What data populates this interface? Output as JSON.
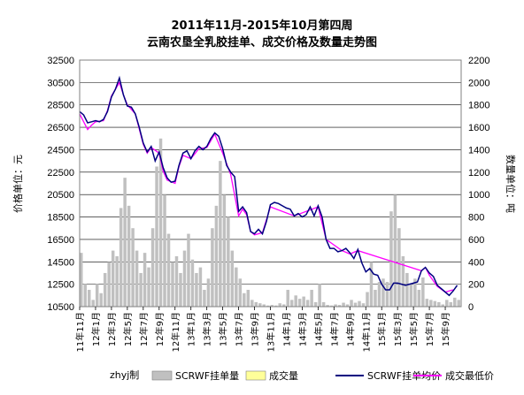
{
  "chart_data": {
    "type": "combo-bar-line",
    "title_line1": "2011年11月-2015年10月第四周",
    "title_line2": "云南农垦全乳胶挂单、成交价格及数量走势图",
    "ylabel_left": "价格单位：元",
    "ylabel_right": "数量单位：吨",
    "credit": "zhyj制",
    "ylim_left": [
      10500,
      32500
    ],
    "ylim_right": [
      0,
      2200
    ],
    "yticks_left": [
      "32500",
      "30500",
      "28500",
      "26500",
      "24500",
      "22500",
      "20500",
      "18500",
      "16500",
      "14500",
      "12500",
      "10500"
    ],
    "yticks_right": [
      "2200",
      "2000",
      "1800",
      "1600",
      "1400",
      "1200",
      "1000",
      "800",
      "600",
      "400",
      "200",
      "0"
    ],
    "xticks": [
      "11年11月",
      "12年1月",
      "12年3月",
      "12年5月",
      "12年7月",
      "12年9月",
      "12年11月",
      "13年1月",
      "13年3月",
      "13年5月",
      "13年7月",
      "13年9月",
      "13年11月",
      "14年1月",
      "14年3月",
      "14年5月",
      "14年7月",
      "14年9月",
      "14年11月",
      "15年1月",
      "15年3月",
      "15年5月",
      "15年7月",
      "15年9月"
    ],
    "legend": [
      {
        "name": "SCRWF挂单量",
        "color": "#c0c0c0",
        "kind": "bar"
      },
      {
        "name": "成交量",
        "color": "#ffff99",
        "kind": "bar"
      },
      {
        "name": "SCRWF挂单均价",
        "color": "#000080",
        "kind": "line"
      },
      {
        "name": "成交最低价",
        "color": "#ff00ff",
        "kind": "line"
      }
    ],
    "series_volume_month_index": [
      0,
      0.5,
      1,
      1.5,
      2,
      2.5,
      3,
      3.5,
      4,
      4.5,
      5,
      5.5,
      6,
      6.5,
      7,
      7.5,
      8,
      8.5,
      9,
      9.5,
      10,
      10.5,
      11,
      11.5,
      12,
      12.5,
      13,
      13.5,
      14,
      14.5,
      15,
      15.5,
      16,
      16.5,
      17,
      17.5,
      18,
      18.5,
      19,
      19.5,
      20,
      20.5,
      21,
      21.5,
      22,
      22.5,
      23,
      23.5,
      24,
      24.5,
      25,
      25.5,
      26,
      26.5,
      27,
      27.5,
      28,
      28.5,
      29,
      29.5,
      30,
      30.5,
      31,
      31.5,
      32,
      32.5,
      33,
      33.5,
      34,
      34.5,
      35,
      35.5,
      36,
      36.5,
      37,
      37.5,
      38,
      38.5,
      39,
      39.5,
      40,
      40.5,
      41,
      41.5,
      42,
      42.5,
      43,
      43.5,
      44,
      44.5,
      45,
      45.5,
      46,
      46.5,
      47,
      47.5
    ],
    "series_volume": [
      480,
      200,
      150,
      60,
      200,
      120,
      300,
      400,
      500,
      450,
      880,
      1150,
      900,
      700,
      500,
      300,
      480,
      350,
      700,
      1250,
      1500,
      1000,
      650,
      400,
      450,
      300,
      500,
      650,
      420,
      300,
      350,
      150,
      250,
      700,
      900,
      1300,
      1000,
      800,
      500,
      350,
      250,
      120,
      150,
      60,
      40,
      30,
      20,
      10,
      15,
      10,
      30,
      20,
      150,
      60,
      100,
      70,
      90,
      60,
      150,
      40,
      200,
      40,
      15,
      10,
      20,
      15,
      35,
      20,
      60,
      35,
      50,
      30,
      130,
      400,
      150,
      220,
      250,
      220,
      850,
      1000,
      700,
      450,
      300,
      200,
      250,
      150,
      260,
      70,
      60,
      50,
      40,
      20,
      60,
      40,
      80,
      60
    ],
    "series_avg_price_points": [
      [
        0,
        27900
      ],
      [
        0.5,
        27600
      ],
      [
        1,
        26900
      ],
      [
        1.5,
        27000
      ],
      [
        2,
        27100
      ],
      [
        2.5,
        27000
      ],
      [
        3,
        27200
      ],
      [
        3.5,
        27900
      ],
      [
        4,
        29200
      ],
      [
        4.5,
        29900
      ],
      [
        5,
        30900
      ],
      [
        5.5,
        29400
      ],
      [
        6,
        28400
      ],
      [
        6.5,
        28300
      ],
      [
        7,
        27700
      ],
      [
        7.5,
        26500
      ],
      [
        8,
        25100
      ],
      [
        8.5,
        24300
      ],
      [
        9,
        24800
      ],
      [
        9.5,
        23500
      ],
      [
        10,
        24300
      ],
      [
        10.5,
        22900
      ],
      [
        11,
        22000
      ],
      [
        11.5,
        21600
      ],
      [
        12,
        21700
      ],
      [
        12.5,
        23100
      ],
      [
        13,
        24200
      ],
      [
        13.5,
        24400
      ],
      [
        14,
        23700
      ],
      [
        14.5,
        24400
      ],
      [
        15,
        24800
      ],
      [
        15.5,
        24500
      ],
      [
        16,
        24800
      ],
      [
        16.5,
        25500
      ],
      [
        17,
        26000
      ],
      [
        17.5,
        25700
      ],
      [
        18,
        24600
      ],
      [
        18.5,
        23100
      ],
      [
        19,
        22500
      ],
      [
        19.5,
        22100
      ],
      [
        20,
        19000
      ],
      [
        20.5,
        19400
      ],
      [
        21,
        18900
      ],
      [
        21.5,
        17200
      ],
      [
        22,
        17000
      ],
      [
        22.5,
        17400
      ],
      [
        23,
        17000
      ],
      [
        23.5,
        18100
      ],
      [
        24,
        19600
      ],
      [
        24.5,
        19800
      ],
      [
        25,
        19700
      ],
      [
        25.5,
        19500
      ],
      [
        26,
        19300
      ],
      [
        26.5,
        19200
      ],
      [
        27,
        18600
      ],
      [
        27.5,
        18800
      ],
      [
        28,
        18500
      ],
      [
        28.5,
        18700
      ],
      [
        29,
        19400
      ],
      [
        29.5,
        18600
      ],
      [
        30,
        19500
      ],
      [
        30.5,
        18500
      ],
      [
        31,
        16500
      ],
      [
        31.5,
        15700
      ],
      [
        32,
        15700
      ],
      [
        32.5,
        15400
      ],
      [
        33,
        15500
      ],
      [
        33.5,
        15700
      ],
      [
        34,
        15300
      ],
      [
        34.5,
        14800
      ],
      [
        35,
        15600
      ],
      [
        35.5,
        14400
      ],
      [
        36,
        13600
      ],
      [
        36.5,
        13900
      ],
      [
        37,
        13400
      ],
      [
        37.5,
        13300
      ],
      [
        38,
        12500
      ],
      [
        38.5,
        12000
      ],
      [
        39,
        12000
      ],
      [
        39.5,
        12600
      ],
      [
        40,
        12600
      ],
      [
        40.5,
        12500
      ],
      [
        41,
        12400
      ],
      [
        41.5,
        12500
      ],
      [
        42,
        12600
      ],
      [
        42.5,
        12700
      ],
      [
        43,
        13700
      ],
      [
        43.5,
        14000
      ],
      [
        44,
        13500
      ],
      [
        44.5,
        13200
      ],
      [
        45,
        12400
      ],
      [
        45.5,
        12100
      ],
      [
        46,
        11800
      ],
      [
        46.5,
        11500
      ],
      [
        47,
        11900
      ],
      [
        47.5,
        12400
      ]
    ],
    "series_min_price_points": [
      [
        0,
        27700
      ],
      [
        1,
        26300
      ],
      [
        1.5,
        26700
      ],
      [
        2,
        27000
      ],
      [
        3,
        27100
      ],
      [
        3.5,
        28000
      ],
      [
        4,
        29300
      ],
      [
        4.5,
        29900
      ],
      [
        5,
        30500
      ],
      [
        5.5,
        29400
      ],
      [
        6,
        28500
      ],
      [
        7,
        27700
      ],
      [
        8,
        25000
      ],
      [
        8.5,
        24200
      ],
      [
        9,
        24700
      ],
      [
        10,
        24200
      ],
      [
        10.5,
        22600
      ],
      [
        11,
        21800
      ],
      [
        12,
        21500
      ],
      [
        12.5,
        23000
      ],
      [
        13,
        24000
      ],
      [
        14,
        23700
      ],
      [
        15,
        24600
      ],
      [
        16,
        24700
      ],
      [
        17,
        25900
      ],
      [
        18,
        24200
      ],
      [
        19,
        22300
      ],
      [
        20,
        18600
      ],
      [
        20.5,
        19200
      ],
      [
        21,
        18700
      ],
      [
        21.5,
        17200
      ],
      [
        22,
        16900
      ],
      [
        23,
        17100
      ],
      [
        24,
        19400
      ],
      [
        27,
        18600
      ],
      [
        30,
        19400
      ],
      [
        31,
        16500
      ],
      [
        33,
        15500
      ],
      [
        34,
        15200
      ],
      [
        35,
        15500
      ],
      [
        43,
        13700
      ],
      [
        43.5,
        14000
      ],
      [
        44,
        13300
      ],
      [
        45,
        12300
      ],
      [
        46,
        11800
      ],
      [
        47,
        12000
      ]
    ]
  }
}
